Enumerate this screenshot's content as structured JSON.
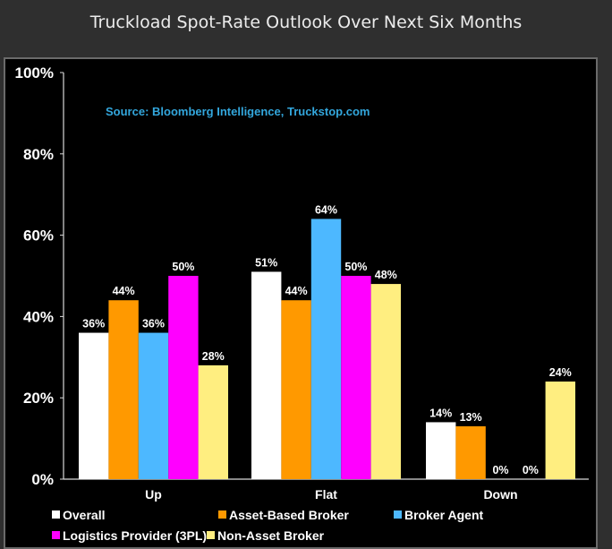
{
  "title": "Truckload Spot-Rate Outlook Over Next Six Months",
  "source": "Source: Bloomberg Intelligence, Truckstop.com",
  "chart_data": {
    "type": "bar",
    "categories": [
      "Up",
      "Flat",
      "Down"
    ],
    "ylim": [
      0,
      100
    ],
    "yticks": [
      "0%",
      "20%",
      "40%",
      "60%",
      "80%",
      "100%"
    ],
    "grid": false,
    "legend_position": "bottom",
    "series": [
      {
        "name": "Overall",
        "color": "#ffffff",
        "values": [
          36,
          51,
          14
        ],
        "labels": [
          "36%",
          "51%",
          "14%"
        ]
      },
      {
        "name": "Asset-Based Broker",
        "color": "#ff9900",
        "values": [
          44,
          44,
          13
        ],
        "labels": [
          "44%",
          "44%",
          "13%"
        ]
      },
      {
        "name": "Broker Agent",
        "color": "#4db8ff",
        "values": [
          36,
          64,
          0
        ],
        "labels": [
          "36%",
          "64%",
          "0%"
        ]
      },
      {
        "name": "Logistics Provider (3PL)",
        "color": "#ff00ff",
        "values": [
          50,
          50,
          0
        ],
        "labels": [
          "50%",
          "50%",
          "0%"
        ]
      },
      {
        "name": "Non-Asset Broker",
        "color": "#ffee80",
        "values": [
          28,
          48,
          24
        ],
        "labels": [
          "28%",
          "48%",
          "24%"
        ]
      }
    ]
  }
}
